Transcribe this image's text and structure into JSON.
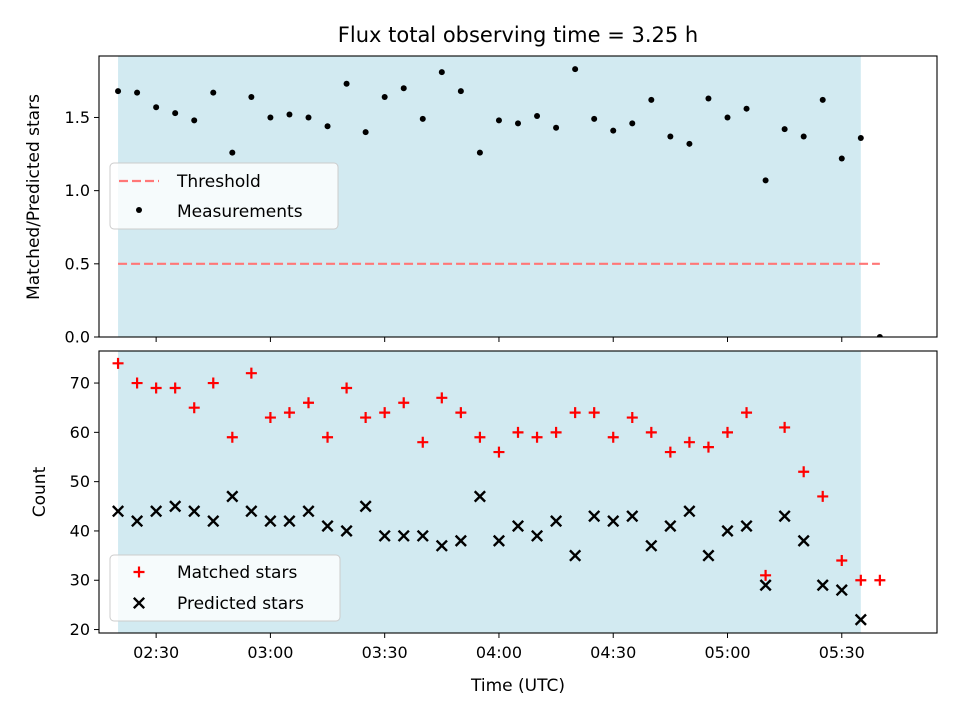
{
  "chart_data": [
    {
      "type": "scatter",
      "title": "Flux total observing time = 3.25 h",
      "xlabel": "",
      "ylabel": "Matched/Predicted stars",
      "xlim": [
        "02:15",
        "05:55"
      ],
      "ylim": [
        0,
        1.92
      ],
      "yticks": [
        "0.0",
        "0.5",
        "1.0",
        "1.5"
      ],
      "ytick_values": [
        0.0,
        0.5,
        1.0,
        1.5
      ],
      "grid": false,
      "legend_position": "center-left",
      "shaded_interval": [
        "02:20",
        "05:35"
      ],
      "shade_color": "#add8e6",
      "threshold": {
        "name": "Threshold",
        "value": 0.5,
        "x": [
          "02:20",
          "05:40"
        ],
        "color": "#ff7777",
        "style": "dashed"
      },
      "series": [
        {
          "name": "Measurements",
          "color": "#000000",
          "x": [
            "02:20",
            "02:25",
            "02:30",
            "02:35",
            "02:40",
            "02:45",
            "02:50",
            "02:55",
            "03:00",
            "03:05",
            "03:10",
            "03:15",
            "03:20",
            "03:25",
            "03:30",
            "03:35",
            "03:40",
            "03:45",
            "03:50",
            "03:55",
            "04:00",
            "04:05",
            "04:10",
            "04:15",
            "04:20",
            "04:25",
            "04:30",
            "04:35",
            "04:40",
            "04:45",
            "04:50",
            "04:55",
            "05:00",
            "05:05",
            "05:10",
            "05:15",
            "05:20",
            "05:25",
            "05:30",
            "05:35",
            "05:40"
          ],
          "y": [
            1.68,
            1.67,
            1.57,
            1.53,
            1.48,
            1.67,
            1.26,
            1.64,
            1.5,
            1.52,
            1.5,
            1.44,
            1.73,
            1.4,
            1.64,
            1.7,
            1.49,
            1.81,
            1.68,
            1.26,
            1.48,
            1.46,
            1.51,
            1.43,
            1.83,
            1.49,
            1.41,
            1.46,
            1.62,
            1.37,
            1.32,
            1.63,
            1.5,
            1.56,
            1.07,
            1.42,
            1.37,
            1.62,
            1.22,
            1.36,
            0.0
          ]
        }
      ]
    },
    {
      "type": "scatter",
      "title": "",
      "xlabel": "Time (UTC)",
      "ylabel": "Count",
      "xlim": [
        "02:15",
        "05:55"
      ],
      "xticks": [
        "02:30",
        "03:00",
        "03:30",
        "04:00",
        "04:30",
        "05:00",
        "05:30"
      ],
      "ylim": [
        19.3,
        76.5
      ],
      "yticks": [
        "20",
        "30",
        "40",
        "50",
        "60",
        "70"
      ],
      "ytick_values": [
        20,
        30,
        40,
        50,
        60,
        70
      ],
      "grid": false,
      "legend_position": "lower-left",
      "shaded_interval": [
        "02:20",
        "05:35"
      ],
      "shade_color": "#add8e6",
      "series": [
        {
          "name": "Matched stars",
          "marker": "plus",
          "color": "#ff0000",
          "x": [
            "02:20",
            "02:25",
            "02:30",
            "02:35",
            "02:40",
            "02:45",
            "02:50",
            "02:55",
            "03:00",
            "03:05",
            "03:10",
            "03:15",
            "03:20",
            "03:25",
            "03:30",
            "03:35",
            "03:40",
            "03:45",
            "03:50",
            "03:55",
            "04:00",
            "04:05",
            "04:10",
            "04:15",
            "04:20",
            "04:25",
            "04:30",
            "04:35",
            "04:40",
            "04:45",
            "04:50",
            "04:55",
            "05:00",
            "05:05",
            "05:10",
            "05:15",
            "05:20",
            "05:25",
            "05:30",
            "05:35",
            "05:40"
          ],
          "y": [
            74,
            70,
            69,
            69,
            65,
            70,
            59,
            72,
            63,
            64,
            66,
            59,
            69,
            63,
            64,
            66,
            58,
            67,
            64,
            59,
            56,
            60,
            59,
            60,
            64,
            64,
            59,
            63,
            60,
            56,
            58,
            57,
            60,
            64,
            31,
            61,
            52,
            47,
            34,
            30,
            30
          ]
        },
        {
          "name": "Predicted stars",
          "marker": "x",
          "color": "#000000",
          "x": [
            "02:20",
            "02:25",
            "02:30",
            "02:35",
            "02:40",
            "02:45",
            "02:50",
            "02:55",
            "03:00",
            "03:05",
            "03:10",
            "03:15",
            "03:20",
            "03:25",
            "03:30",
            "03:35",
            "03:40",
            "03:45",
            "03:50",
            "03:55",
            "04:00",
            "04:05",
            "04:10",
            "04:15",
            "04:20",
            "04:25",
            "04:30",
            "04:35",
            "04:40",
            "04:45",
            "04:50",
            "04:55",
            "05:00",
            "05:05",
            "05:10",
            "05:15",
            "05:20",
            "05:25",
            "05:30",
            "05:35"
          ],
          "y": [
            44,
            42,
            44,
            45,
            44,
            42,
            47,
            44,
            42,
            42,
            44,
            41,
            40,
            45,
            39,
            39,
            39,
            37,
            38,
            47,
            38,
            41,
            39,
            42,
            35,
            43,
            42,
            43,
            37,
            41,
            44,
            35,
            40,
            41,
            29,
            43,
            38,
            29,
            28,
            22
          ]
        }
      ]
    }
  ]
}
